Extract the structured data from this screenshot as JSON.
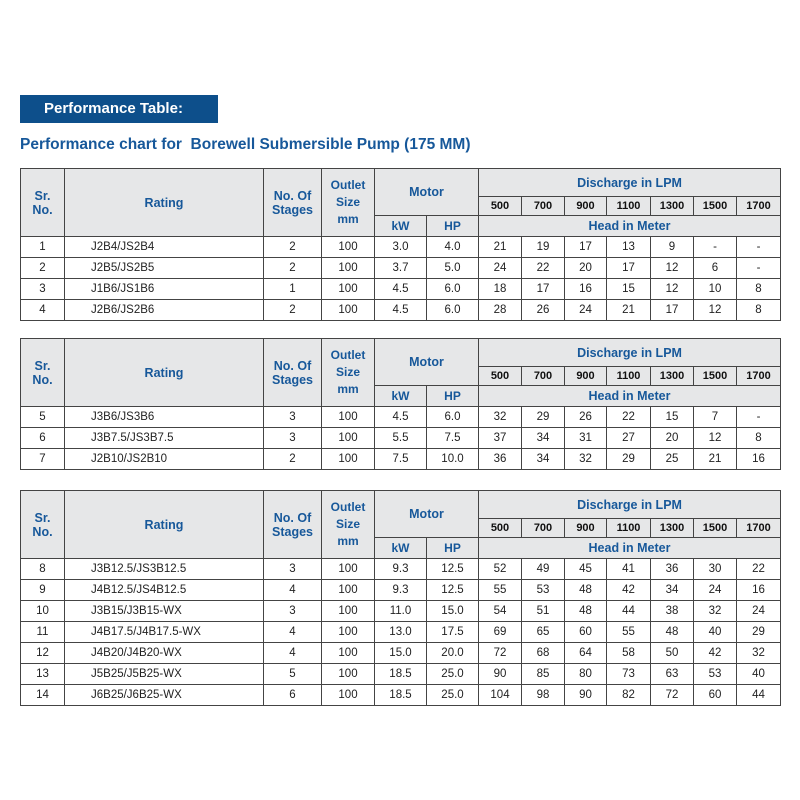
{
  "header": {
    "badge": "Performance Table:",
    "subtitle": "Performance chart for  Borewell Submersible Pump (175 MM)"
  },
  "columns": {
    "sr": "Sr.\nNo.",
    "rating": "Rating",
    "stages": "No. Of\nStages",
    "outlet": "Outlet\nSize\nmm",
    "motor": "Motor",
    "kw": "kW",
    "hp": "HP",
    "discharge": "Discharge in LPM",
    "head": "Head in Meter",
    "flows": [
      "500",
      "700",
      "900",
      "1100",
      "1300",
      "1500",
      "1700"
    ]
  },
  "tables": [
    {
      "rows": [
        [
          "1",
          "J2B4/JS2B4",
          "2",
          "100",
          "3.0",
          "4.0",
          "21",
          "19",
          "17",
          "13",
          "9",
          "-",
          "-"
        ],
        [
          "2",
          "J2B5/JS2B5",
          "2",
          "100",
          "3.7",
          "5.0",
          "24",
          "22",
          "20",
          "17",
          "12",
          "6",
          "-"
        ],
        [
          "3",
          "J1B6/JS1B6",
          "1",
          "100",
          "4.5",
          "6.0",
          "18",
          "17",
          "16",
          "15",
          "12",
          "10",
          "8"
        ],
        [
          "4",
          "J2B6/JS2B6",
          "2",
          "100",
          "4.5",
          "6.0",
          "28",
          "26",
          "24",
          "21",
          "17",
          "12",
          "8"
        ]
      ]
    },
    {
      "rows": [
        [
          "5",
          "J3B6/JS3B6",
          "3",
          "100",
          "4.5",
          "6.0",
          "32",
          "29",
          "26",
          "22",
          "15",
          "7",
          "-"
        ],
        [
          "6",
          "J3B7.5/JS3B7.5",
          "3",
          "100",
          "5.5",
          "7.5",
          "37",
          "34",
          "31",
          "27",
          "20",
          "12",
          "8"
        ],
        [
          "7",
          "J2B10/JS2B10",
          "2",
          "100",
          "7.5",
          "10.0",
          "36",
          "34",
          "32",
          "29",
          "25",
          "21",
          "16"
        ]
      ]
    },
    {
      "rows": [
        [
          "8",
          "J3B12.5/JS3B12.5",
          "3",
          "100",
          "9.3",
          "12.5",
          "52",
          "49",
          "45",
          "41",
          "36",
          "30",
          "22"
        ],
        [
          "9",
          "J4B12.5/JS4B12.5",
          "4",
          "100",
          "9.3",
          "12.5",
          "55",
          "53",
          "48",
          "42",
          "34",
          "24",
          "16"
        ],
        [
          "10",
          "J3B15/J3B15-WX",
          "3",
          "100",
          "11.0",
          "15.0",
          "54",
          "51",
          "48",
          "44",
          "38",
          "32",
          "24"
        ],
        [
          "11",
          "J4B17.5/J4B17.5-WX",
          "4",
          "100",
          "13.0",
          "17.5",
          "69",
          "65",
          "60",
          "55",
          "48",
          "40",
          "29"
        ],
        [
          "12",
          "J4B20/J4B20-WX",
          "4",
          "100",
          "15.0",
          "20.0",
          "72",
          "68",
          "64",
          "58",
          "50",
          "42",
          "32"
        ],
        [
          "13",
          "J5B25/J5B25-WX",
          "5",
          "100",
          "18.5",
          "25.0",
          "90",
          "85",
          "80",
          "73",
          "63",
          "53",
          "40"
        ],
        [
          "14",
          "J6B25/J6B25-WX",
          "6",
          "100",
          "18.5",
          "25.0",
          "104",
          "98",
          "90",
          "82",
          "72",
          "60",
          "44"
        ]
      ]
    }
  ]
}
